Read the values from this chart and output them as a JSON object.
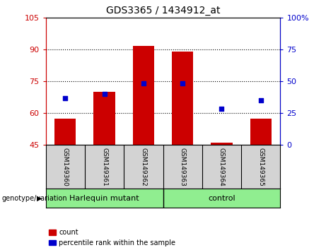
{
  "title": "GDS3365 / 1434912_at",
  "samples": [
    "GSM149360",
    "GSM149361",
    "GSM149362",
    "GSM149363",
    "GSM149364",
    "GSM149365"
  ],
  "bar_values": [
    57.5,
    70.0,
    91.5,
    89.0,
    46.0,
    57.5
  ],
  "bar_bottom": 45,
  "percentile_left_values": [
    67.0,
    69.0,
    74.0,
    74.0,
    62.0,
    66.0
  ],
  "bar_color": "#cc0000",
  "dot_color": "#0000cc",
  "left_ylim": [
    45,
    105
  ],
  "left_yticks": [
    45,
    60,
    75,
    90,
    105
  ],
  "right_ylim": [
    0,
    100
  ],
  "right_yticks": [
    0,
    25,
    50,
    75,
    100
  ],
  "right_yticklabels": [
    "0",
    "25",
    "50",
    "75",
    "100%"
  ],
  "group_labels": [
    "Harlequin mutant",
    "control"
  ],
  "group_color": "#90ee90",
  "group_label_prefix": "genotype/variation",
  "legend_count_label": "count",
  "legend_pct_label": "percentile rank within the sample",
  "gridline_yticks": [
    60,
    75,
    90
  ],
  "tick_color_left": "#cc0000",
  "tick_color_right": "#0000cc",
  "bar_width": 0.55,
  "plot_bg": "#ffffff",
  "x_bg_color": "#d3d3d3"
}
